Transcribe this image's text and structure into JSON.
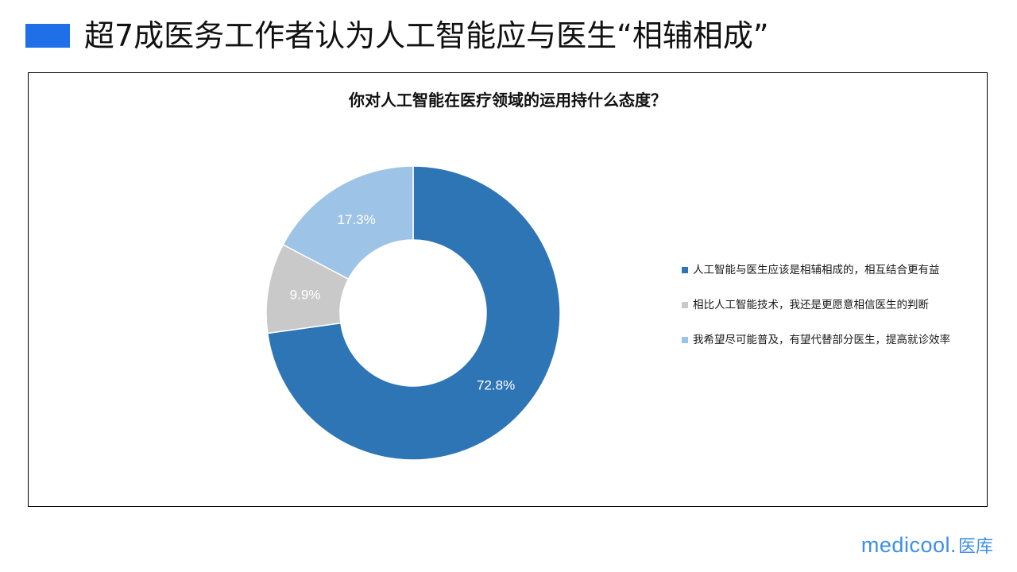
{
  "header": {
    "title": "超7成医务工作者认为人工智能应与医生“相辅相成”",
    "accent_color": "#1f6fe8"
  },
  "brand": {
    "latin": "medicool.",
    "cjk": "医库",
    "color": "#3d8fe6"
  },
  "chart_data": {
    "type": "pie",
    "title": "你对人工智能在医疗领域的运用持什么态度？",
    "donut": true,
    "legend_position": "right",
    "series": [
      {
        "name": "人工智能与医生应该是相辅相成的，相互结合更有益",
        "value": 72.8,
        "label": "72.8%",
        "color": "#2e75b6"
      },
      {
        "name": "相比人工智能技术，我还是更愿意相信医生的判断",
        "value": 9.9,
        "label": "9.9%",
        "color": "#c9c9c9"
      },
      {
        "name": "我希望尽可能普及，有望代替部分医生，提高就诊效率",
        "value": 17.3,
        "label": "17.3%",
        "color": "#9dc3e6"
      }
    ]
  }
}
